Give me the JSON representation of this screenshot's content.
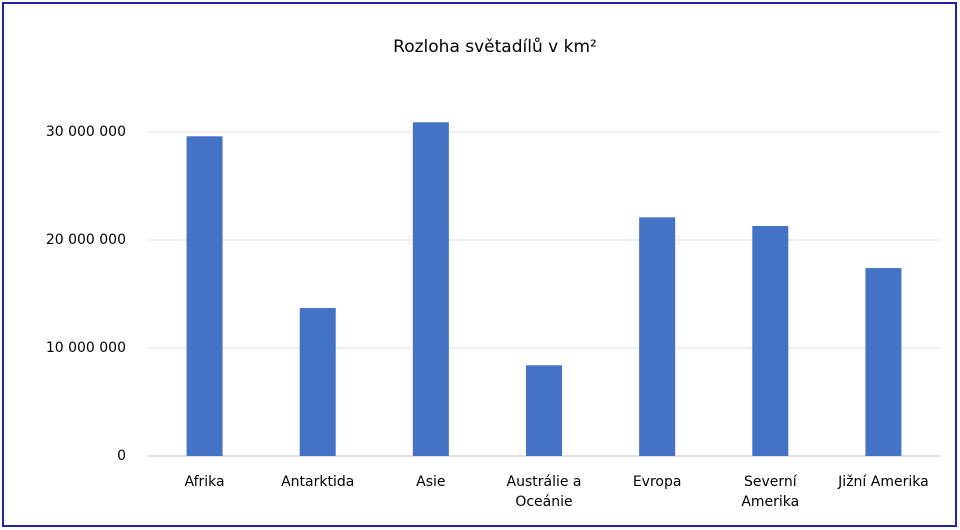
{
  "chart_data": {
    "type": "bar",
    "title": "Rozloha světadílů v km²",
    "categories": [
      "Afrika",
      "Antarktida",
      "Asie",
      "Austrálie a Oceánie",
      "Evropa",
      "Severní Amerika",
      "Jižní Amerika"
    ],
    "values": [
      29600000,
      13700000,
      30900000,
      8400000,
      22100000,
      21300000,
      17400000
    ],
    "color": "#4472c4",
    "ylim": [
      0,
      35000000
    ],
    "yticks": [
      0,
      {
        "value": 10000000,
        "label": "10 000 000"
      },
      {
        "value": 20000000,
        "label": "20 000 000"
      },
      {
        "value": 30000000,
        "label": "30 000 000"
      }
    ],
    "grid": true
  }
}
